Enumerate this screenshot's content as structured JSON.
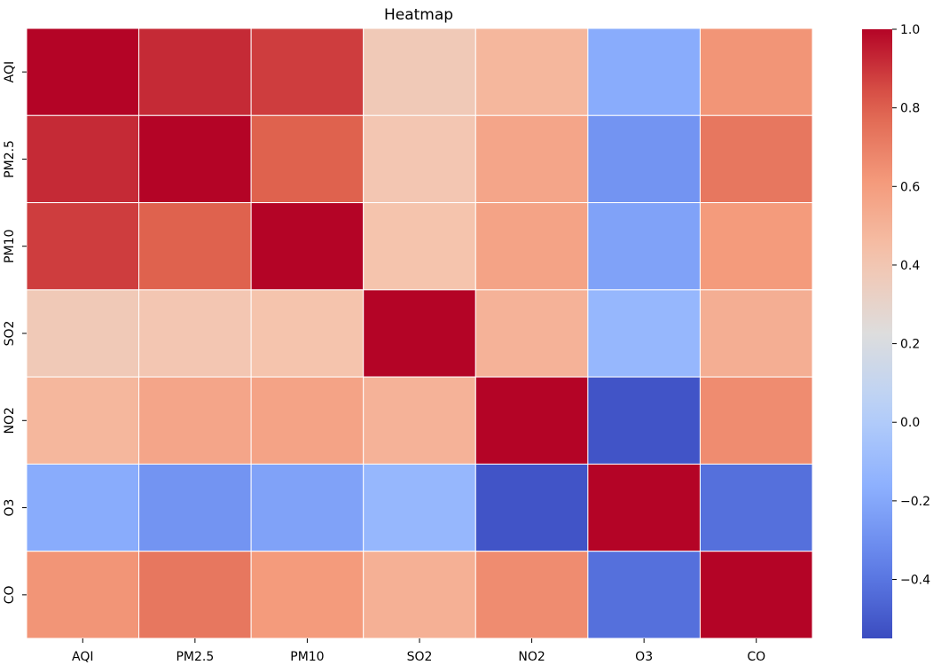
{
  "chart_data": {
    "type": "heatmap",
    "title": "Heatmap",
    "x_labels": [
      "AQI",
      "PM2.5",
      "PM10",
      "SO2",
      "NO2",
      "O3",
      "CO"
    ],
    "y_labels": [
      "AQI",
      "PM2.5",
      "PM10",
      "SO2",
      "NO2",
      "O3",
      "CO"
    ],
    "values": [
      [
        1.0,
        0.92,
        0.88,
        0.38,
        0.48,
        -0.18,
        0.63
      ],
      [
        0.92,
        1.0,
        0.8,
        0.4,
        0.56,
        -0.28,
        0.73
      ],
      [
        0.88,
        0.8,
        1.0,
        0.42,
        0.57,
        -0.22,
        0.61
      ],
      [
        0.38,
        0.4,
        0.42,
        1.0,
        0.5,
        -0.12,
        0.52
      ],
      [
        0.48,
        0.56,
        0.57,
        0.5,
        1.0,
        -0.52,
        0.66
      ],
      [
        -0.18,
        -0.28,
        -0.22,
        -0.12,
        -0.52,
        1.0,
        -0.42
      ],
      [
        0.63,
        0.73,
        0.61,
        0.51,
        0.66,
        -0.42,
        1.0
      ]
    ],
    "colorbar": {
      "colormap": "coolwarm",
      "vmin": -0.55,
      "vmax": 1.0,
      "ticks": [
        1.0,
        0.8,
        0.6,
        0.4,
        0.2,
        0.0,
        -0.2,
        -0.4
      ],
      "tick_labels": [
        "1.0",
        "0.8",
        "0.6",
        "0.4",
        "0.2",
        "0.0",
        "−0.2",
        "−0.4"
      ]
    },
    "cell_border_color": "#ffffff",
    "grid": false,
    "legend": "colorbar-right"
  }
}
